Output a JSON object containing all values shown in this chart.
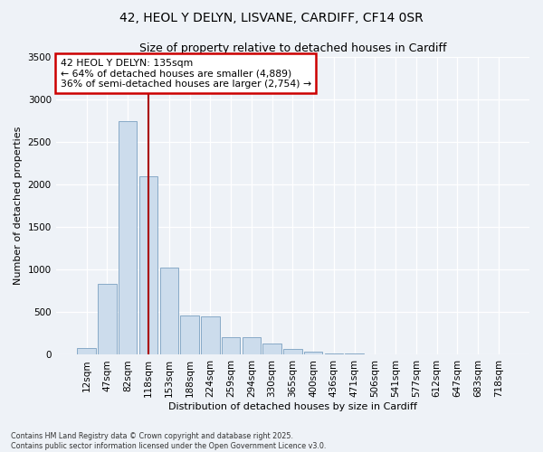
{
  "title_line1": "42, HEOL Y DELYN, LISVANE, CARDIFF, CF14 0SR",
  "title_line2": "Size of property relative to detached houses in Cardiff",
  "xlabel": "Distribution of detached houses by size in Cardiff",
  "ylabel": "Number of detached properties",
  "bar_color": "#ccdcec",
  "bar_edgecolor": "#7aa0c0",
  "vline_color": "#aa0000",
  "vline_x": 3,
  "annotation_line1": "42 HEOL Y DELYN: 135sqm",
  "annotation_line2": "← 64% of detached houses are smaller (4,889)",
  "annotation_line3": "36% of semi-detached houses are larger (2,754) →",
  "annotation_box_color": "#cc0000",
  "categories": [
    "12sqm",
    "47sqm",
    "82sqm",
    "118sqm",
    "153sqm",
    "188sqm",
    "224sqm",
    "259sqm",
    "294sqm",
    "330sqm",
    "365sqm",
    "400sqm",
    "436sqm",
    "471sqm",
    "506sqm",
    "541sqm",
    "577sqm",
    "612sqm",
    "647sqm",
    "683sqm",
    "718sqm"
  ],
  "values": [
    75,
    830,
    2750,
    2100,
    1020,
    460,
    455,
    210,
    210,
    130,
    65,
    35,
    18,
    12,
    7,
    4,
    3,
    2,
    1,
    1,
    1
  ],
  "ylim": [
    0,
    3500
  ],
  "yticks": [
    0,
    500,
    1000,
    1500,
    2000,
    2500,
    3000,
    3500
  ],
  "footer_line1": "Contains HM Land Registry data © Crown copyright and database right 2025.",
  "footer_line2": "Contains public sector information licensed under the Open Government Licence v3.0.",
  "background_color": "#eef2f7",
  "plot_background": "#eef2f7",
  "grid_color": "#ffffff",
  "title_fontsize": 10,
  "subtitle_fontsize": 9,
  "axis_label_fontsize": 8,
  "tick_fontsize": 7.5
}
